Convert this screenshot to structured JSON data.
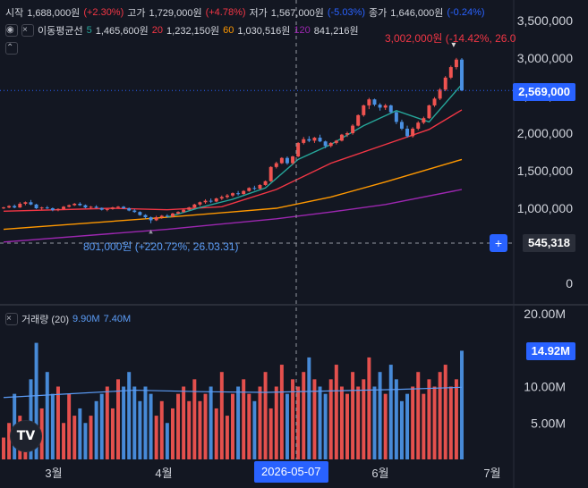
{
  "header": {
    "open_label": "시작",
    "open_value": "1,688,000원",
    "open_change": "(+2.30%)",
    "high_label": "고가",
    "high_value": "1,729,000원",
    "high_change": "(+4.78%)",
    "low_label": "저가",
    "low_value": "1,567,000원",
    "low_change": "(-5.03%)",
    "close_label": "종가",
    "close_value": "1,646,000원",
    "close_change": "(-0.24%)"
  },
  "ma": {
    "label": "이동평균선",
    "p1": "5",
    "v1": "1,465,600원",
    "p2": "20",
    "v2": "1,232,150원",
    "p3": "60",
    "v3": "1,030,516원",
    "p4": "120",
    "v4": "841,216원"
  },
  "volume_header": {
    "label": "거래량 (20)",
    "v1": "9.90M",
    "v2": "7.40M"
  },
  "tags": {
    "price_current": "2,569,000",
    "price_crosshair": "545,318",
    "volume_current": "14.92M",
    "date_crosshair": "2026-05-07"
  },
  "annotations": {
    "high": "3,002,000원 (-14.42%, 26.0",
    "low": "801,000원 (+220.72%, 26.03.31)"
  },
  "logo_text": "TV",
  "colors": {
    "up": "#f23645",
    "down": "#2962ff",
    "ma5": "#26a69a",
    "ma20": "#f23645",
    "ma60": "#ff9800",
    "ma120": "#9c27b0",
    "bg": "#131722"
  },
  "chart_data": {
    "type": "candlestick",
    "price_axis": {
      "ticks": [
        "3,500,000",
        "3,000,000",
        "2,500,000",
        "2,000,000",
        "1,500,000",
        "1,000,000",
        "0"
      ],
      "ylim": [
        0,
        3800000
      ]
    },
    "volume_axis": {
      "ticks": [
        "20.00M",
        "10.00M",
        "5.00M"
      ],
      "ylim": [
        0,
        20000000
      ]
    },
    "x_axis": {
      "ticks": [
        "3월",
        "4월",
        "5월",
        "6월",
        "7월"
      ]
    },
    "candles": [
      [
        1000000,
        1020000,
        990000,
        1010000
      ],
      [
        1010000,
        1040000,
        1000000,
        1030000
      ],
      [
        1030000,
        1050000,
        1000000,
        1010000
      ],
      [
        1010000,
        1080000,
        1005000,
        1060000
      ],
      [
        1060000,
        1090000,
        1040000,
        1080000
      ],
      [
        1080000,
        1110000,
        1040000,
        1050000
      ],
      [
        1050000,
        1060000,
        990000,
        1000000
      ],
      [
        1000000,
        1020000,
        980000,
        1010000
      ],
      [
        1010000,
        1030000,
        990000,
        1000000
      ],
      [
        1000000,
        1010000,
        960000,
        975000
      ],
      [
        975000,
        1000000,
        960000,
        990000
      ],
      [
        990000,
        1030000,
        980000,
        1020000
      ],
      [
        1020000,
        1050000,
        1010000,
        1040000
      ],
      [
        1040000,
        1070000,
        1030000,
        1060000
      ],
      [
        1060000,
        1080000,
        1030000,
        1040000
      ],
      [
        1040000,
        1050000,
        1000000,
        1010000
      ],
      [
        1010000,
        1030000,
        990000,
        1020000
      ],
      [
        1020000,
        1040000,
        1000000,
        1005000
      ],
      [
        1005000,
        1010000,
        970000,
        980000
      ],
      [
        980000,
        1000000,
        960000,
        990000
      ],
      [
        990000,
        1020000,
        980000,
        1010000
      ],
      [
        1010000,
        1030000,
        1000000,
        1020000
      ],
      [
        1020000,
        1030000,
        990000,
        1000000
      ],
      [
        1000000,
        1010000,
        960000,
        970000
      ],
      [
        970000,
        990000,
        940000,
        950000
      ],
      [
        950000,
        960000,
        900000,
        910000
      ],
      [
        910000,
        920000,
        860000,
        880000
      ],
      [
        880000,
        890000,
        801000,
        840000
      ],
      [
        840000,
        900000,
        830000,
        880000
      ],
      [
        880000,
        910000,
        860000,
        900000
      ],
      [
        900000,
        920000,
        880000,
        890000
      ],
      [
        890000,
        940000,
        880000,
        930000
      ],
      [
        930000,
        960000,
        920000,
        950000
      ],
      [
        950000,
        990000,
        940000,
        980000
      ],
      [
        980000,
        1020000,
        970000,
        1010000
      ],
      [
        1010000,
        1060000,
        1000000,
        1050000
      ],
      [
        1050000,
        1090000,
        1030000,
        1080000
      ],
      [
        1080000,
        1120000,
        1060000,
        1100000
      ],
      [
        1100000,
        1130000,
        1070000,
        1090000
      ],
      [
        1090000,
        1140000,
        1080000,
        1130000
      ],
      [
        1130000,
        1170000,
        1110000,
        1150000
      ],
      [
        1150000,
        1190000,
        1130000,
        1170000
      ],
      [
        1170000,
        1210000,
        1150000,
        1200000
      ],
      [
        1200000,
        1230000,
        1170000,
        1190000
      ],
      [
        1190000,
        1240000,
        1180000,
        1230000
      ],
      [
        1230000,
        1280000,
        1220000,
        1270000
      ],
      [
        1270000,
        1300000,
        1240000,
        1260000
      ],
      [
        1260000,
        1320000,
        1250000,
        1310000
      ],
      [
        1310000,
        1370000,
        1300000,
        1360000
      ],
      [
        1360000,
        1560000,
        1350000,
        1550000
      ],
      [
        1550000,
        1620000,
        1530000,
        1600000
      ],
      [
        1600000,
        1680000,
        1590000,
        1670000
      ],
      [
        1670000,
        1690000,
        1580000,
        1600000
      ],
      [
        1600000,
        1700000,
        1580000,
        1690000
      ],
      [
        1690000,
        1880000,
        1680000,
        1870000
      ],
      [
        1870000,
        1950000,
        1850000,
        1920000
      ],
      [
        1920000,
        1960000,
        1880000,
        1900000
      ],
      [
        1900000,
        1950000,
        1870000,
        1940000
      ],
      [
        1940000,
        1980000,
        1880000,
        1890000
      ],
      [
        1890000,
        1900000,
        1800000,
        1830000
      ],
      [
        1830000,
        1880000,
        1810000,
        1870000
      ],
      [
        1870000,
        1910000,
        1850000,
        1900000
      ],
      [
        1900000,
        1990000,
        1890000,
        1980000
      ],
      [
        1980000,
        2020000,
        1950000,
        2000000
      ],
      [
        2000000,
        2120000,
        1980000,
        2100000
      ],
      [
        2100000,
        2250000,
        2090000,
        2240000
      ],
      [
        2240000,
        2380000,
        2220000,
        2370000
      ],
      [
        2370000,
        2470000,
        2320000,
        2450000
      ],
      [
        2450000,
        2460000,
        2360000,
        2380000
      ],
      [
        2380000,
        2400000,
        2300000,
        2340000
      ],
      [
        2340000,
        2390000,
        2310000,
        2370000
      ],
      [
        2370000,
        2380000,
        2260000,
        2280000
      ],
      [
        2280000,
        2290000,
        2120000,
        2150000
      ],
      [
        2150000,
        2180000,
        2040000,
        2060000
      ],
      [
        2060000,
        2100000,
        1940000,
        1960000
      ],
      [
        1960000,
        2080000,
        1940000,
        2060000
      ],
      [
        2060000,
        2160000,
        2040000,
        2140000
      ],
      [
        2140000,
        2220000,
        2120000,
        2200000
      ],
      [
        2200000,
        2380000,
        2190000,
        2370000
      ],
      [
        2370000,
        2480000,
        2350000,
        2460000
      ],
      [
        2460000,
        2600000,
        2440000,
        2580000
      ],
      [
        2580000,
        2760000,
        2560000,
        2740000
      ],
      [
        2740000,
        2900000,
        2720000,
        2880000
      ],
      [
        2880000,
        3002000,
        2850000,
        2980000
      ],
      [
        2980000,
        3000000,
        2560000,
        2569000
      ]
    ],
    "volumes": [
      3,
      5,
      9,
      6,
      5,
      11,
      16,
      7,
      12,
      9,
      10,
      5,
      9,
      6,
      7,
      5,
      6,
      8,
      9,
      10,
      7,
      11,
      10,
      12,
      10,
      8,
      10,
      9,
      6,
      8,
      5,
      7,
      9,
      10,
      8,
      11,
      8,
      9,
      10,
      7,
      12,
      6,
      9,
      10,
      11,
      9,
      8,
      10,
      12,
      7,
      10,
      13,
      9,
      11,
      10,
      12,
      14,
      11,
      10,
      9,
      11,
      13,
      10,
      9,
      12,
      10,
      11,
      14,
      10,
      12,
      9,
      13,
      11,
      8,
      9,
      10,
      12,
      9,
      11,
      10,
      12,
      13,
      10,
      11,
      14.92
    ],
    "ma": {
      "ma5": [
        [
          30,
          880000
        ],
        [
          36,
          1010000
        ],
        [
          42,
          1120000
        ],
        [
          48,
          1270000
        ],
        [
          54,
          1650000
        ],
        [
          60,
          1850000
        ],
        [
          66,
          2100000
        ],
        [
          72,
          2300000
        ],
        [
          78,
          2150000
        ],
        [
          84,
          2650000
        ]
      ],
      "ma20": [
        [
          0,
          960000
        ],
        [
          20,
          1000000
        ],
        [
          30,
          980000
        ],
        [
          40,
          1020000
        ],
        [
          50,
          1250000
        ],
        [
          60,
          1600000
        ],
        [
          70,
          1850000
        ],
        [
          78,
          2050000
        ],
        [
          84,
          2310000
        ]
      ],
      "ma60": [
        [
          0,
          720000
        ],
        [
          30,
          880000
        ],
        [
          50,
          1000000
        ],
        [
          60,
          1150000
        ],
        [
          70,
          1350000
        ],
        [
          84,
          1650000
        ]
      ],
      "ma120": [
        [
          0,
          550000
        ],
        [
          30,
          720000
        ],
        [
          50,
          860000
        ],
        [
          60,
          950000
        ],
        [
          70,
          1050000
        ],
        [
          84,
          1250000
        ]
      ]
    },
    "volume_ma": [
      8.5,
      9.0,
      9.5,
      9.3,
      9.2,
      9.4,
      9.6,
      9.9
    ]
  }
}
